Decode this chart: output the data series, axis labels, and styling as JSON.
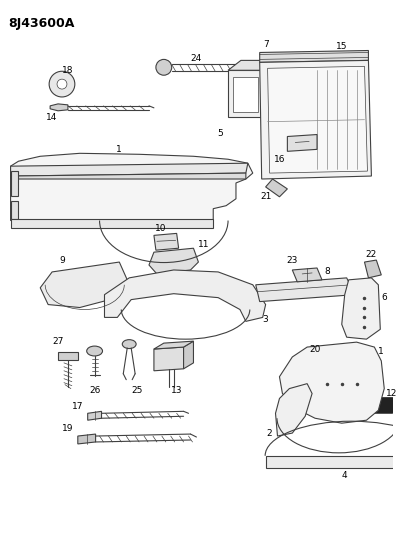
{
  "title": "8J43600A",
  "background_color": "#ffffff",
  "line_color": "#404040",
  "label_fontsize": 6.5,
  "title_fontsize": 9
}
